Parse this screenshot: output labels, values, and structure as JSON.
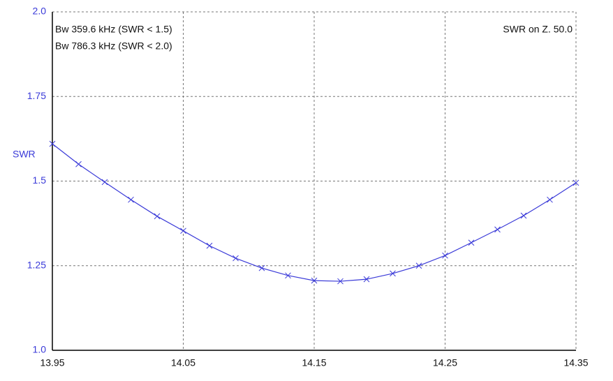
{
  "chart_data": {
    "type": "line",
    "y_label": "SWR",
    "annotations": [
      "Bw 359.6 kHz (SWR < 1.5)",
      "Bw 786.3 kHz (SWR < 2.0)",
      "SWR on Z. 50.0"
    ],
    "x": [
      13.95,
      13.97,
      13.99,
      14.01,
      14.03,
      14.05,
      14.07,
      14.09,
      14.11,
      14.13,
      14.15,
      14.17,
      14.19,
      14.21,
      14.23,
      14.25,
      14.27,
      14.29,
      14.31,
      14.33,
      14.35
    ],
    "series": [
      {
        "color": "#3a3ad8",
        "values": [
          1.61,
          1.55,
          1.497,
          1.445,
          1.396,
          1.353,
          1.309,
          1.272,
          1.243,
          1.221,
          1.206,
          1.204,
          1.21,
          1.227,
          1.25,
          1.28,
          1.318,
          1.357,
          1.398,
          1.445,
          1.495
        ]
      }
    ],
    "xlim": [
      13.95,
      14.35
    ],
    "xticks": [
      13.95,
      14.05,
      14.15,
      14.25,
      14.35
    ],
    "ylim": [
      1,
      2
    ],
    "yticks": [
      {
        "value": 1,
        "label": "1.0"
      },
      1.25,
      1.5,
      1.75,
      {
        "value": 2,
        "label": "2.0"
      }
    ],
    "grid": true
  }
}
